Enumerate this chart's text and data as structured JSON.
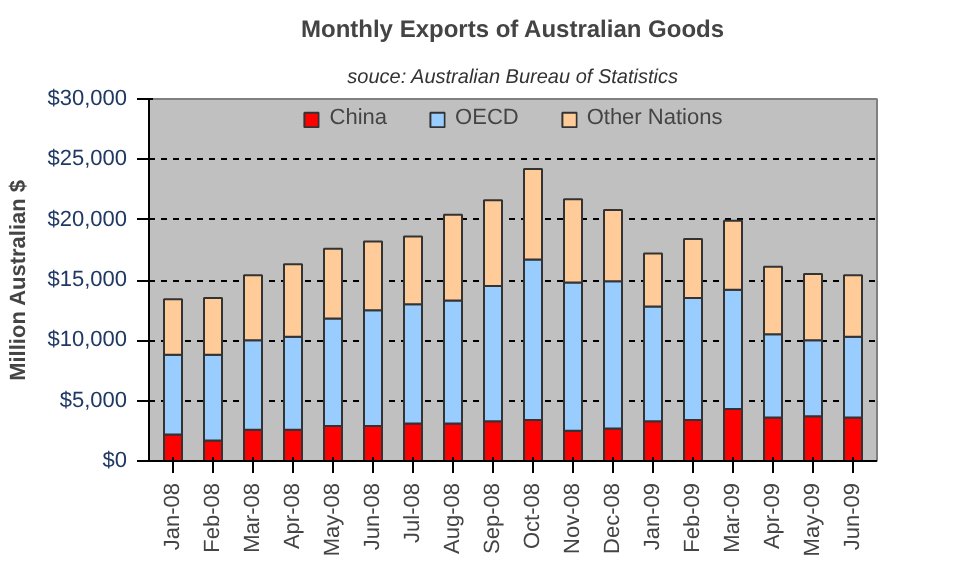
{
  "chart_data": {
    "type": "bar",
    "title": "Monthly Exports of Australian Goods",
    "subtitle": "souce: Australian Bureau of Statistics",
    "ylabel": "Million Australian $",
    "categories": [
      "Jan-08",
      "Feb-08",
      "Mar-08",
      "Apr-08",
      "May-08",
      "Jun-08",
      "Jul-08",
      "Aug-08",
      "Sep-08",
      "Oct-08",
      "Nov-08",
      "Dec-08",
      "Jan-09",
      "Feb-09",
      "Mar-09",
      "Apr-09",
      "May-09",
      "Jun-09"
    ],
    "stacked": true,
    "series": [
      {
        "name": "China",
        "color": "#ff0000",
        "values": [
          2200,
          1700,
          2600,
          2600,
          2900,
          2900,
          3100,
          3100,
          3300,
          3400,
          2500,
          2700,
          3300,
          3400,
          4300,
          3600,
          3700,
          3600
        ]
      },
      {
        "name": "OECD",
        "color": "#99ccff",
        "values": [
          6600,
          7100,
          7400,
          7700,
          8900,
          9600,
          9900,
          10200,
          11200,
          13300,
          12300,
          12200,
          9500,
          10100,
          9900,
          6900,
          6300,
          6700
        ]
      },
      {
        "name": "Other Nations",
        "color": "#ffcc99",
        "values": [
          4600,
          4700,
          5400,
          6000,
          5800,
          5700,
          5600,
          7100,
          7100,
          7500,
          6900,
          5900,
          4400,
          4900,
          5700,
          5600,
          5500,
          5100
        ]
      }
    ],
    "ylim": [
      0,
      30000
    ],
    "yticks": [
      {
        "value": 0,
        "label": "$0"
      },
      {
        "value": 5000,
        "label": "$5,000"
      },
      {
        "value": 10000,
        "label": "$10,000"
      },
      {
        "value": 15000,
        "label": "$15,000"
      },
      {
        "value": 20000,
        "label": "$20,000"
      },
      {
        "value": 25000,
        "label": "$25,000"
      },
      {
        "value": 30000,
        "label": "$30,000"
      }
    ],
    "grid": "y",
    "legend": "top"
  }
}
